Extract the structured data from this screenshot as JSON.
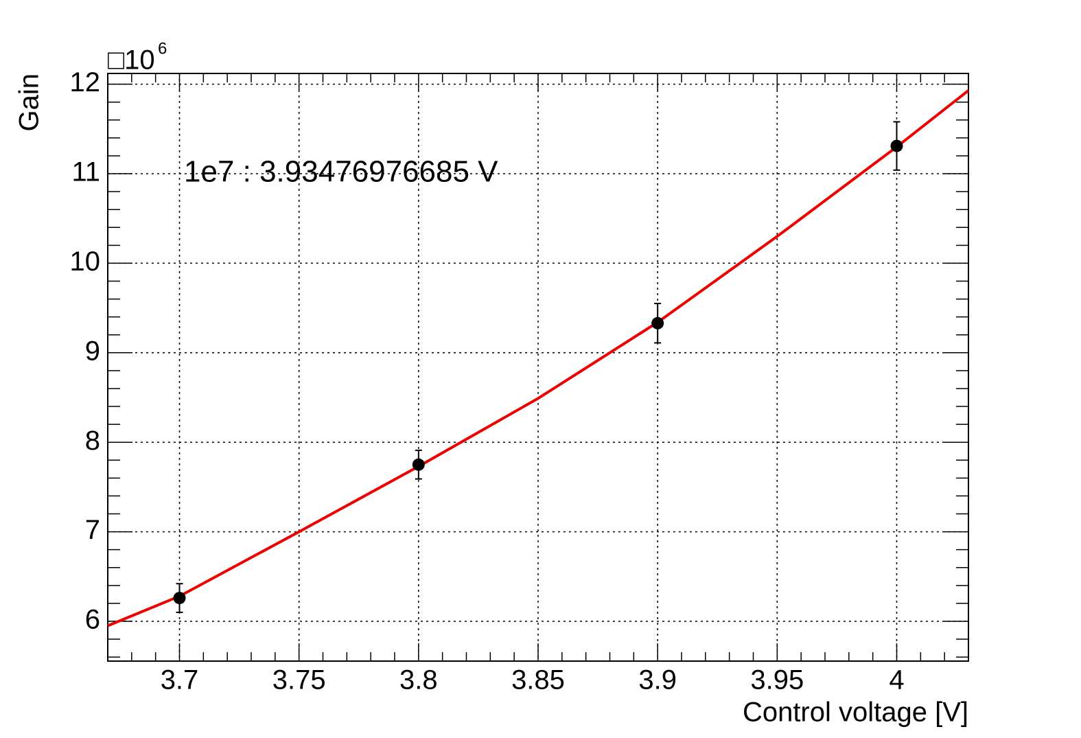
{
  "chart_data": {
    "type": "scatter",
    "x_label": "Control voltage [V]",
    "y_label": "Gain",
    "y_multiplier": "□10",
    "y_multiplier_exponent": "6",
    "annotation": "1e7 : 3.93476976685 V",
    "xlim": [
      3.67,
      4.03
    ],
    "ylim": [
      5.555,
      12.12
    ],
    "xticks": [
      3.7,
      3.75,
      3.8,
      3.85,
      3.9,
      3.95,
      4
    ],
    "yticks": [
      6,
      7,
      8,
      9,
      10,
      11,
      12
    ],
    "xminorticks": [
      3.67,
      3.68,
      3.69,
      3.71,
      3.72,
      3.73,
      3.74,
      3.76,
      3.77,
      3.78,
      3.79,
      3.81,
      3.82,
      3.83,
      3.84,
      3.86,
      3.87,
      3.88,
      3.89,
      3.91,
      3.92,
      3.93,
      3.94,
      3.96,
      3.97,
      3.98,
      3.99,
      4.01,
      4.02,
      4.03
    ],
    "yminorticks": [
      5.6,
      5.8,
      6.2,
      6.4,
      6.6,
      6.8,
      7.2,
      7.4,
      7.6,
      7.8,
      8.2,
      8.4,
      8.6,
      8.8,
      9.2,
      9.4,
      9.6,
      9.8,
      10.2,
      10.4,
      10.6,
      10.8,
      11.2,
      11.4,
      11.6,
      11.8
    ],
    "grid": true,
    "series": [
      {
        "color": "#000000",
        "x": [
          3.7,
          3.8,
          3.9,
          4.0
        ],
        "values": [
          6.26,
          7.75,
          9.33,
          11.31
        ],
        "errors": [
          0.16,
          0.16,
          0.22,
          0.27
        ]
      }
    ],
    "fit": {
      "color": "#ee0000",
      "x": [
        3.67,
        3.7,
        3.75,
        3.8,
        3.85,
        3.9,
        3.95,
        4.0,
        4.03
      ],
      "values": [
        5.95,
        6.28,
        7.0,
        7.73,
        8.49,
        9.34,
        10.3,
        11.3,
        11.93
      ]
    }
  }
}
